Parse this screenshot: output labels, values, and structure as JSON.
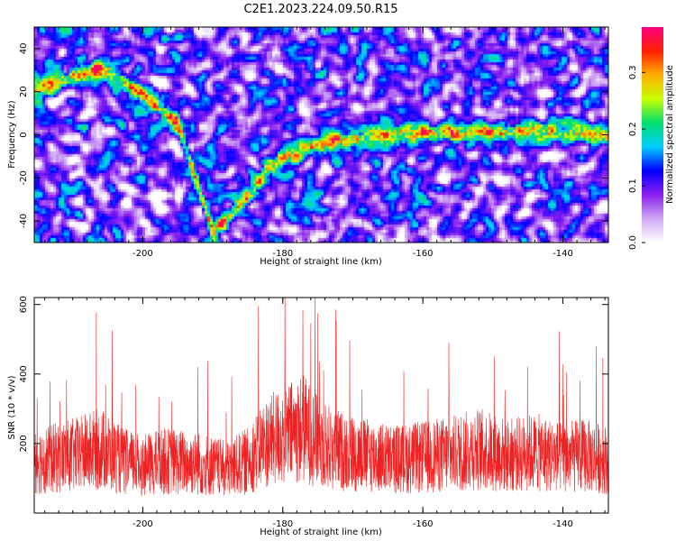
{
  "title": "C2E1.2023.224.09.50.R15",
  "chart_data": [
    {
      "type": "heatmap",
      "xlabel": "Height of straight line (km)",
      "ylabel": "Frequency (Hz)",
      "xlim": [
        -215.5,
        -133.5
      ],
      "ylim": [
        -50,
        50
      ],
      "xticks": [
        -200,
        -180,
        -160,
        -140
      ],
      "yticks": [
        -40,
        -20,
        0,
        20,
        40
      ],
      "colorbar": {
        "label": "Normalized spectral amplitude",
        "range": [
          0,
          0.38
        ],
        "ticks": [
          0.0,
          0.1,
          0.2,
          0.3
        ],
        "colormap": [
          "#ffffff",
          "#cfa8f2",
          "#8a1ef0",
          "#0000ff",
          "#00d0ff",
          "#00e070",
          "#c8ff00",
          "#ffb000",
          "#ff2000",
          "#ff0080"
        ]
      },
      "echo_trace": {
        "x": [
          -215,
          -209,
          -205,
          -200,
          -195,
          -190,
          -187,
          -184,
          -182,
          -180,
          -178,
          -175,
          -172,
          -168,
          -164,
          -160,
          -156,
          -150,
          -146,
          -142,
          -138,
          -134
        ],
        "frequency": [
          22,
          28,
          30,
          18,
          5,
          -45,
          -35,
          -25,
          -15,
          -10,
          -8,
          -5,
          -3,
          -1,
          0,
          1,
          1,
          1,
          2,
          1,
          1,
          0
        ]
      }
    },
    {
      "type": "line",
      "xlabel": "Height of straight line (km)",
      "ylabel": "SNR (10 * v/v)",
      "xlim": [
        -215.5,
        -133.5
      ],
      "ylim": [
        0,
        620
      ],
      "xticks": [
        -200,
        -180,
        -160,
        -140
      ],
      "yticks": [
        200,
        400,
        600
      ],
      "line_color": "#ee2222",
      "series": [
        {
          "x": [
            -215,
            -210,
            -206,
            -203,
            -200,
            -197,
            -194,
            -191,
            -188,
            -185,
            -183,
            -181,
            -179,
            -177,
            -175,
            -172,
            -168,
            -164,
            -160,
            -156,
            -152,
            -148,
            -144,
            -140,
            -137,
            -134
          ],
          "y": [
            150,
            165,
            185,
            150,
            135,
            150,
            145,
            140,
            125,
            150,
            195,
            215,
            230,
            245,
            205,
            180,
            165,
            155,
            160,
            170,
            185,
            165,
            175,
            160,
            165,
            155
          ]
        }
      ]
    }
  ]
}
